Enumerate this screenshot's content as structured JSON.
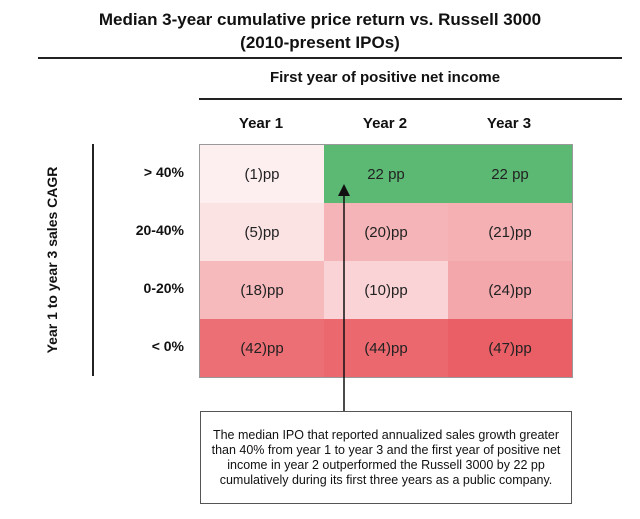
{
  "chart_data": {
    "type": "heatmap",
    "title_line1": "Median 3-year cumulative price return vs. Russell 3000",
    "title_line2": "(2010-present IPOs)",
    "xlabel": "First year of positive net income",
    "ylabel": "Year 1 to year 3 sales CAGR",
    "columns": [
      "Year 1",
      "Year 2",
      "Year 3"
    ],
    "rows": [
      "> 40%",
      "20-40%",
      "0-20%",
      "< 0%"
    ],
    "values": [
      [
        -1,
        22,
        22
      ],
      [
        -5,
        -20,
        -21
      ],
      [
        -18,
        -10,
        -24
      ],
      [
        -42,
        -44,
        -47
      ]
    ],
    "labels": [
      [
        "(1)pp",
        "22 pp",
        "22 pp"
      ],
      [
        "(5)pp",
        "(20)pp",
        "(21)pp"
      ],
      [
        "(18)pp",
        "(10)pp",
        "(24)pp"
      ],
      [
        "(42)pp",
        "(44)pp",
        "(47)pp"
      ]
    ],
    "unit": "pp",
    "colors": {
      "positive": "#5bb974",
      "negative": "#ea5f66",
      "neutral": "#ffffff"
    },
    "annotation": "The median IPO that reported annualized sales growth greater than 40% from year 1 to year 3 and the first year of positive net income in year 2 outperformed the Russell 3000 by 22 pp cumulatively during its first three years as a public company."
  }
}
